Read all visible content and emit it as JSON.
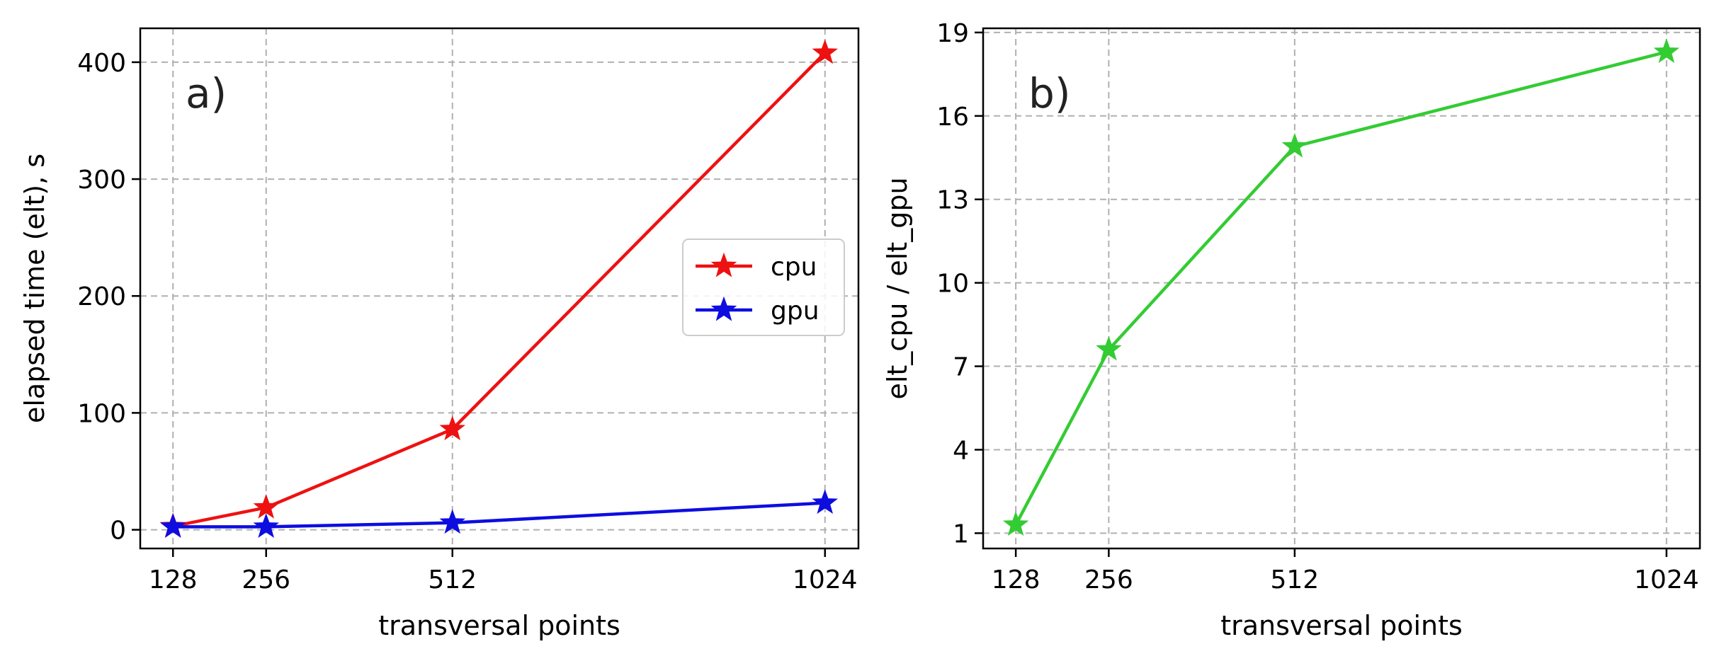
{
  "chart_data": [
    {
      "type": "line",
      "panel_label": "a)",
      "xlabel": "transversal points",
      "ylabel": "elapsed time (elt), s",
      "x": [
        128,
        256,
        512,
        1024
      ],
      "xticks": [
        128,
        256,
        512,
        1024
      ],
      "xtick_labels": [
        "128",
        "256",
        "512",
        "1024"
      ],
      "xlim": [
        83,
        1070
      ],
      "yticks": [
        0,
        100,
        200,
        300,
        400
      ],
      "ytick_labels": [
        "0",
        "100",
        "200",
        "300",
        "400"
      ],
      "ylim": [
        -16,
        429
      ],
      "grid": true,
      "legend_position": "center-right",
      "series": [
        {
          "name": "cpu",
          "color": "#ee1111",
          "marker": "star",
          "values": [
            3,
            19,
            86,
            408
          ]
        },
        {
          "name": "gpu",
          "color": "#0d0de0",
          "marker": "star",
          "values": [
            2.5,
            2.5,
            6,
            23
          ]
        }
      ]
    },
    {
      "type": "line",
      "panel_label": "b)",
      "xlabel": "transversal points",
      "ylabel": "elt_cpu / elt_gpu",
      "x": [
        128,
        256,
        512,
        1024
      ],
      "xticks": [
        128,
        256,
        512,
        1024
      ],
      "xtick_labels": [
        "128",
        "256",
        "512",
        "1024"
      ],
      "xlim": [
        83,
        1070
      ],
      "yticks": [
        1,
        4,
        7,
        10,
        13,
        16,
        19
      ],
      "ytick_labels": [
        "1",
        "4",
        "7",
        "10",
        "13",
        "16",
        "19"
      ],
      "ylim": [
        0.45,
        19.15
      ],
      "grid": true,
      "legend_position": "",
      "series": [
        {
          "name": "",
          "color": "#33cc33",
          "marker": "star",
          "values": [
            1.3,
            7.6,
            14.9,
            18.3
          ]
        }
      ]
    }
  ]
}
